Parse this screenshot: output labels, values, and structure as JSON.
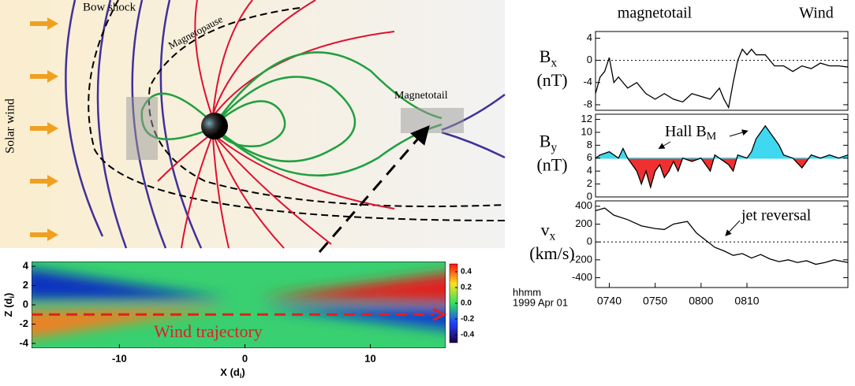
{
  "diagram": {
    "bow_shock": "Bow shock",
    "magnetopause": "Magnetopause",
    "solar_wind": "Solar wind",
    "magnetotail": "Magnetotail"
  },
  "header": {
    "left": "magnetotail",
    "right": "Wind"
  },
  "chart_data": [
    {
      "type": "heatmap",
      "xlabel": {
        "main": "X (d",
        "sub": "i",
        "end": ")"
      },
      "ylabel": {
        "main": "Z (d",
        "sub": "i",
        "end": ")"
      },
      "xlim": [
        -17,
        16
      ],
      "xticks": [
        -10,
        0,
        10
      ],
      "ylim": [
        -4.5,
        4.5
      ],
      "yticks": [
        4,
        2,
        0,
        -2,
        -4
      ],
      "colorbar": {
        "lim": [
          -0.5,
          0.5
        ],
        "ticks": [
          0.4,
          0.2,
          {
            "value": 0,
            "label": "0.0"
          },
          -0.2,
          -0.4
        ]
      },
      "trajectory": {
        "label": "Wind trajectory",
        "z": -1,
        "x": [
          -17,
          15
        ],
        "color": "#e02020"
      }
    },
    {
      "type": "line",
      "ylabel": {
        "main": "B",
        "sub": "x",
        "unit": "(nT)"
      },
      "ylim": [
        -9,
        5.2
      ],
      "yticks": [
        4,
        0,
        -4,
        -8
      ],
      "ref_line": 0,
      "xlim": [
        457,
        512
      ],
      "series": [
        {
          "color": "#000000",
          "x": [
            457,
            458,
            459,
            460,
            461,
            462,
            464,
            466,
            468,
            470,
            472,
            474,
            476,
            478,
            480,
            482,
            484,
            485,
            486,
            487,
            488,
            489,
            490,
            491,
            492,
            494,
            496,
            498,
            500,
            502,
            504,
            506,
            508,
            510,
            512
          ],
          "values": [
            -6,
            -3,
            -2,
            0.5,
            -4,
            -3,
            -5,
            -4,
            -6,
            -7,
            -6,
            -7,
            -7.5,
            -6,
            -6.5,
            -7,
            -5,
            -7,
            -8.5,
            -4,
            0,
            2,
            1,
            2,
            1,
            1,
            -1,
            -1,
            -2,
            -1,
            -1.5,
            -0.5,
            -1,
            -1,
            -1.2
          ]
        }
      ]
    },
    {
      "type": "line",
      "ylabel": {
        "main": "B",
        "sub": "y",
        "unit": "(nT)"
      },
      "ylim": [
        0,
        12.8
      ],
      "yticks": [
        12,
        10,
        8,
        6,
        4,
        2,
        0
      ],
      "baseline": 6,
      "above_color": "#40d8f0",
      "below_color": "#f03030",
      "xlim": [
        457,
        512
      ],
      "annotation": {
        "main": "Hall B",
        "sub": "M"
      },
      "series": [
        {
          "color": "#000000",
          "x": [
            457,
            458,
            460,
            462,
            463,
            464,
            466,
            467,
            468,
            469,
            470,
            471,
            472,
            473,
            474,
            475,
            476,
            478,
            480,
            482,
            483,
            484,
            486,
            487,
            488,
            490,
            491,
            492,
            493,
            494,
            495,
            496,
            497,
            498,
            500,
            502,
            504,
            506,
            508,
            510,
            512
          ],
          "values": [
            6,
            6.5,
            7,
            6,
            7.5,
            6,
            4,
            2,
            4,
            1.5,
            4,
            5,
            3,
            4,
            5.5,
            4,
            6,
            5.5,
            6,
            4,
            6.5,
            6,
            5,
            4,
            6.5,
            6,
            7,
            9,
            10,
            11,
            10,
            9,
            8,
            6.5,
            6,
            4.5,
            6.5,
            6,
            6.5,
            6,
            6.5
          ]
        }
      ]
    },
    {
      "type": "line",
      "ylabel": {
        "main": "v",
        "sub": "x",
        "unit": "(km/s)"
      },
      "ylim": [
        -510,
        460
      ],
      "yticks": [
        400,
        200,
        0,
        -200,
        -400
      ],
      "ref_line": 0,
      "xlim": [
        457,
        512
      ],
      "xticks": [
        {
          "value": 460,
          "label": "0740"
        },
        {
          "value": 470,
          "label": "0750"
        },
        {
          "value": 480,
          "label": "0800"
        },
        {
          "value": 490,
          "label": "0810"
        }
      ],
      "xlabel": [
        "hhmm",
        "1999 Apr 01"
      ],
      "annotation": "jet reversal",
      "series": [
        {
          "color": "#000000",
          "x": [
            457,
            459,
            461,
            464,
            467,
            470,
            472,
            474,
            477,
            479,
            481,
            483,
            485,
            487,
            489,
            491,
            493,
            495,
            497,
            499,
            501,
            503,
            505,
            507,
            509,
            512
          ],
          "values": [
            350,
            380,
            300,
            250,
            180,
            150,
            140,
            200,
            230,
            100,
            20,
            -60,
            -100,
            -150,
            -130,
            -180,
            -140,
            -190,
            -220,
            -200,
            -230,
            -210,
            -250,
            -230,
            -200,
            -230
          ]
        }
      ]
    }
  ]
}
